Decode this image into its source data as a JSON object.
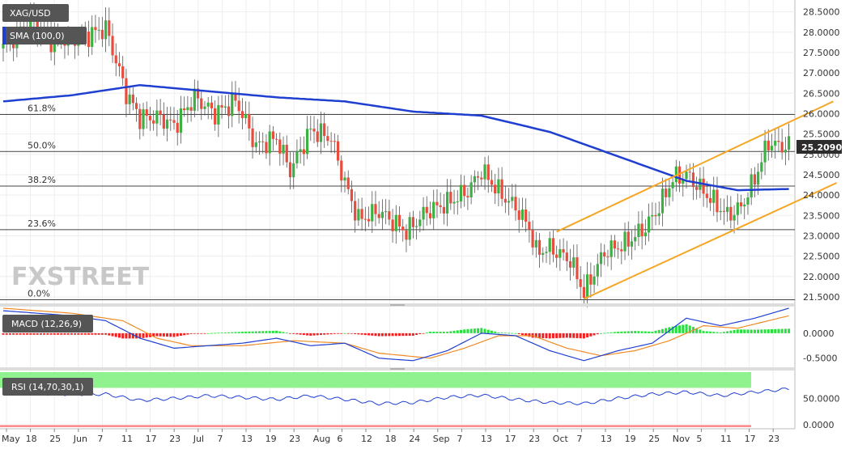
{
  "chart_data": {
    "type": "candlestick",
    "symbol": "XAG/USD",
    "last_price": "25.20900",
    "price_axis": {
      "range": [
        21.4,
        28.75
      ],
      "ticks": [
        "28.5000",
        "28.0000",
        "27.5000",
        "27.0000",
        "26.5000",
        "26.0000",
        "25.5000",
        "25.0000",
        "24.5000",
        "24.0000",
        "23.5000",
        "23.0000",
        "22.5000",
        "22.0000",
        "21.5000"
      ]
    },
    "x_axis": {
      "ticks": [
        "May",
        "18",
        "25",
        "Jun",
        "7",
        "11",
        "17",
        "23",
        "Jul",
        "7",
        "13",
        "19",
        "23",
        "Aug",
        "6",
        "12",
        "18",
        "24",
        "Sep",
        "7",
        "13",
        "17",
        "23",
        "Oct",
        "7",
        "13",
        "19",
        "25",
        "Nov",
        "5",
        "11",
        "17",
        "23"
      ]
    },
    "fibonacci": [
      {
        "label": "61.8%",
        "value": 25.98
      },
      {
        "label": "50.0%",
        "value": 25.07
      },
      {
        "label": "38.2%",
        "value": 24.22
      },
      {
        "label": "23.6%",
        "value": 23.15
      },
      {
        "label": "0.0%",
        "value": 21.43
      }
    ],
    "price_anchors": [
      [
        0,
        27.6
      ],
      [
        8,
        28.3
      ],
      [
        14,
        27.8
      ],
      [
        24,
        27.9
      ],
      [
        30,
        28.1
      ],
      [
        36,
        26.5
      ],
      [
        40,
        25.9
      ],
      [
        46,
        25.9
      ],
      [
        50,
        25.7
      ],
      [
        56,
        26.4
      ],
      [
        62,
        26.0
      ],
      [
        68,
        26.3
      ],
      [
        70,
        26.0
      ],
      [
        74,
        25.2
      ],
      [
        80,
        25.4
      ],
      [
        84,
        24.6
      ],
      [
        90,
        25.6
      ],
      [
        96,
        25.4
      ],
      [
        100,
        24.3
      ],
      [
        104,
        23.4
      ],
      [
        110,
        23.6
      ],
      [
        118,
        23.1
      ],
      [
        124,
        23.6
      ],
      [
        130,
        23.8
      ],
      [
        136,
        24.1
      ],
      [
        140,
        24.6
      ],
      [
        146,
        24.0
      ],
      [
        150,
        23.7
      ],
      [
        154,
        23.2
      ],
      [
        156,
        22.6
      ],
      [
        160,
        22.7
      ],
      [
        166,
        22.4
      ],
      [
        170,
        21.6
      ],
      [
        176,
        22.6
      ],
      [
        182,
        22.8
      ],
      [
        188,
        23.2
      ],
      [
        192,
        23.7
      ],
      [
        196,
        24.4
      ],
      [
        200,
        24.5
      ],
      [
        206,
        24.0
      ],
      [
        212,
        23.5
      ],
      [
        216,
        23.7
      ],
      [
        220,
        24.4
      ],
      [
        224,
        25.3
      ],
      [
        227,
        25.2
      ]
    ],
    "sma_label": "SMA (100,0)",
    "sma_anchors": [
      [
        0,
        26.3
      ],
      [
        20,
        26.45
      ],
      [
        40,
        26.7
      ],
      [
        60,
        26.55
      ],
      [
        80,
        26.4
      ],
      [
        100,
        26.3
      ],
      [
        120,
        26.05
      ],
      [
        140,
        25.95
      ],
      [
        160,
        25.55
      ],
      [
        180,
        24.95
      ],
      [
        200,
        24.35
      ],
      [
        215,
        24.12
      ],
      [
        230,
        24.15
      ]
    ],
    "channel": [
      {
        "x1": 162,
        "y1": 23.1,
        "x2": 243,
        "y2": 26.3
      },
      {
        "x1": 170,
        "y1": 21.45,
        "x2": 244,
        "y2": 24.3
      }
    ],
    "macd": {
      "label": "MACD (12,26,9)",
      "ticks": [
        "0.0000",
        "-0.5000"
      ],
      "range": [
        -0.65,
        0.5
      ],
      "macd_anchors": [
        [
          0,
          0.45
        ],
        [
          20,
          0.35
        ],
        [
          30,
          0.25
        ],
        [
          40,
          -0.1
        ],
        [
          50,
          -0.3
        ],
        [
          60,
          -0.25
        ],
        [
          70,
          -0.2
        ],
        [
          80,
          -0.1
        ],
        [
          90,
          -0.25
        ],
        [
          100,
          -0.2
        ],
        [
          110,
          -0.5
        ],
        [
          120,
          -0.55
        ],
        [
          130,
          -0.35
        ],
        [
          140,
          0.0
        ],
        [
          150,
          -0.05
        ],
        [
          160,
          -0.35
        ],
        [
          170,
          -0.55
        ],
        [
          180,
          -0.35
        ],
        [
          190,
          -0.2
        ],
        [
          200,
          0.3
        ],
        [
          210,
          0.15
        ],
        [
          220,
          0.3
        ],
        [
          230,
          0.5
        ]
      ],
      "signal_anchors": [
        [
          0,
          0.5
        ],
        [
          20,
          0.4
        ],
        [
          35,
          0.25
        ],
        [
          45,
          -0.1
        ],
        [
          55,
          -0.25
        ],
        [
          70,
          -0.25
        ],
        [
          85,
          -0.15
        ],
        [
          100,
          -0.2
        ],
        [
          110,
          -0.4
        ],
        [
          125,
          -0.5
        ],
        [
          135,
          -0.3
        ],
        [
          145,
          -0.05
        ],
        [
          155,
          -0.05
        ],
        [
          165,
          -0.3
        ],
        [
          175,
          -0.45
        ],
        [
          185,
          -0.35
        ],
        [
          195,
          -0.15
        ],
        [
          205,
          0.15
        ],
        [
          215,
          0.1
        ],
        [
          230,
          0.35
        ]
      ]
    },
    "rsi": {
      "label": "RSI (14,70,30,1)",
      "ticks": [
        "50.0000",
        "0.0000"
      ],
      "range": [
        -5,
        100
      ],
      "overbought": 70,
      "oversold": 30,
      "anchors": [
        [
          0,
          62
        ],
        [
          15,
          58
        ],
        [
          30,
          58
        ],
        [
          40,
          46
        ],
        [
          50,
          50
        ],
        [
          60,
          55
        ],
        [
          70,
          52
        ],
        [
          80,
          48
        ],
        [
          90,
          55
        ],
        [
          100,
          48
        ],
        [
          110,
          40
        ],
        [
          120,
          42
        ],
        [
          130,
          52
        ],
        [
          140,
          56
        ],
        [
          150,
          48
        ],
        [
          160,
          42
        ],
        [
          170,
          40
        ],
        [
          180,
          50
        ],
        [
          190,
          58
        ],
        [
          200,
          62
        ],
        [
          210,
          55
        ],
        [
          220,
          62
        ],
        [
          230,
          68
        ]
      ]
    }
  },
  "watermark": "FXSTREET",
  "colors": {
    "up": "#3cb043",
    "down": "#e74c3c",
    "sma": "#1f3fd1",
    "channel": "#f5a623",
    "macd_line": "#1f3fd1",
    "signal_line": "#f08a24",
    "hist_pos": "#27e03d",
    "hist_neg": "#f22020",
    "rsi_line": "#1f3fd1",
    "overbought_fill": "#8ff28f",
    "oversold_fill": "#fb8f8f",
    "grid": "#eeeeee",
    "label_bg": "#555555",
    "last_price_bg": "#2c2c2c"
  }
}
